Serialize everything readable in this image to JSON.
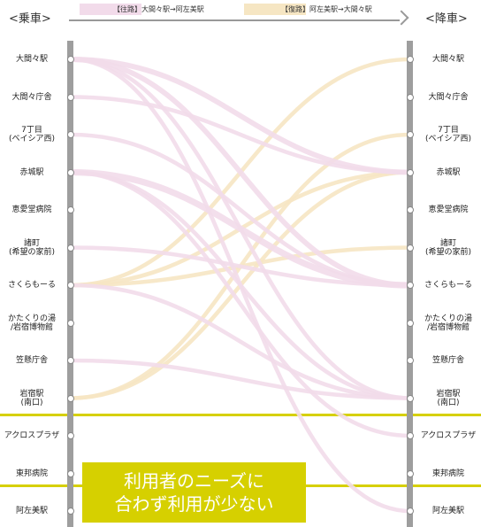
{
  "header": {
    "boarding_label": "<乗車>",
    "alighting_label": "<降車>"
  },
  "legend": {
    "outbound": {
      "label": "【往路】大間々駅→阿左美駅",
      "color": "#f2dbea"
    },
    "return": {
      "label": "【復路】阿左美駅→大間々駅",
      "color": "#f6e6c3"
    }
  },
  "stops": [
    "大間々駅",
    "大間々庁舎",
    "7丁目\n(ベイシア西)",
    "赤城駅",
    "恵愛堂病院",
    "諸町\n(希望の家前)",
    "さくらもーる",
    "かたくりの湯\n/岩宿博物館",
    "笠懸庁舎",
    "岩宿駅\n(南口)",
    "アクロスプラザ",
    "東邦病院",
    "阿左美駅"
  ],
  "flows": {
    "outbound": [
      {
        "from": 0,
        "to": 3,
        "weight": 3
      },
      {
        "from": 0,
        "to": 6,
        "weight": 3
      },
      {
        "from": 0,
        "to": 9,
        "weight": 2
      },
      {
        "from": 0,
        "to": 12,
        "weight": 2
      },
      {
        "from": 1,
        "to": 3,
        "weight": 2
      },
      {
        "from": 2,
        "to": 6,
        "weight": 2
      },
      {
        "from": 3,
        "to": 6,
        "weight": 4
      },
      {
        "from": 3,
        "to": 9,
        "weight": 2
      },
      {
        "from": 3,
        "to": 10,
        "weight": 2
      },
      {
        "from": 5,
        "to": 6,
        "weight": 2
      },
      {
        "from": 6,
        "to": 9,
        "weight": 2
      },
      {
        "from": 8,
        "to": 9,
        "weight": 2
      }
    ],
    "return": [
      {
        "from": 6,
        "to": 0,
        "weight": 2
      },
      {
        "from": 6,
        "to": 3,
        "weight": 2
      },
      {
        "from": 6,
        "to": 5,
        "weight": 2
      },
      {
        "from": 9,
        "to": 2,
        "weight": 2
      },
      {
        "from": 9,
        "to": 3,
        "weight": 2
      }
    ]
  },
  "highlight": {
    "callout_line1": "利用者のニーズに",
    "callout_line2": "合わず利用が少ない",
    "color": "#d6d000"
  }
}
